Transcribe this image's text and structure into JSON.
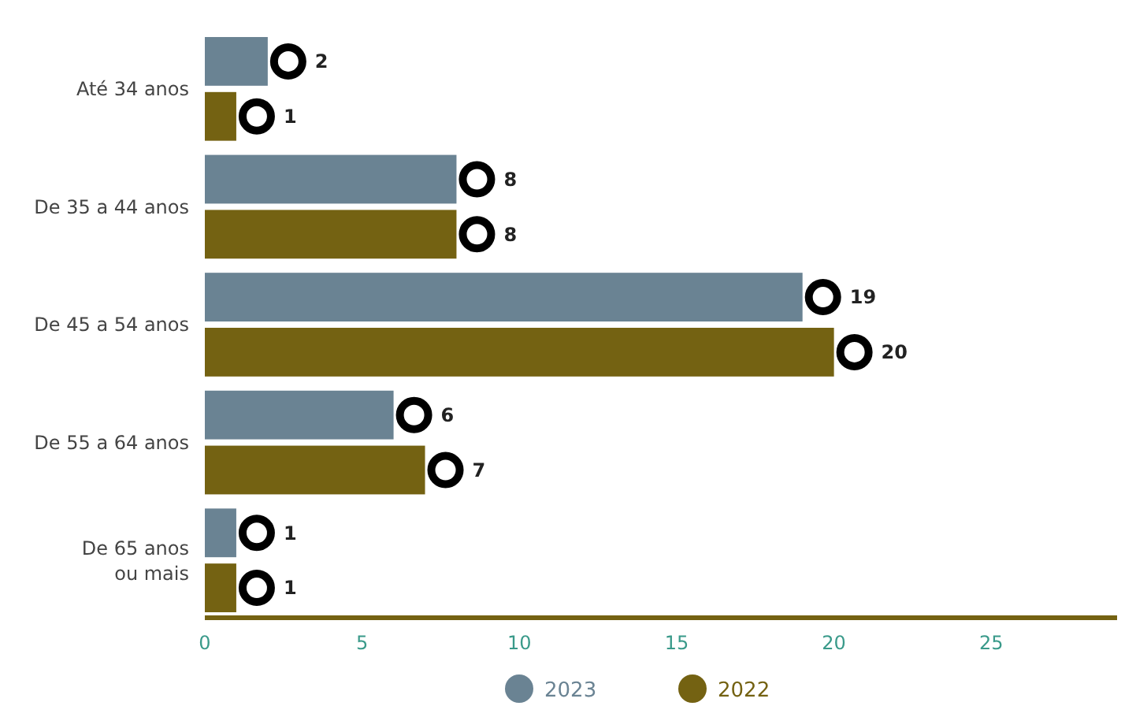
{
  "chart_data": {
    "type": "bar",
    "orientation": "horizontal",
    "categories": [
      "Até 34 anos",
      "De 35 a 44 anos",
      "De 45 a 54 anos",
      "De 55 a 64 anos",
      "De 65 anos\nou mais"
    ],
    "series": [
      {
        "name": "2023",
        "color": "#6a8393",
        "values": [
          2,
          8,
          19,
          6,
          1
        ]
      },
      {
        "name": "2022",
        "color": "#746212",
        "values": [
          1,
          8,
          20,
          7,
          1
        ]
      }
    ],
    "xlim": [
      0,
      29
    ],
    "xticks": [
      0,
      5,
      10,
      15,
      20,
      25
    ],
    "marker": "circle",
    "legend": "bottom",
    "grid": false,
    "data_labels": true
  }
}
